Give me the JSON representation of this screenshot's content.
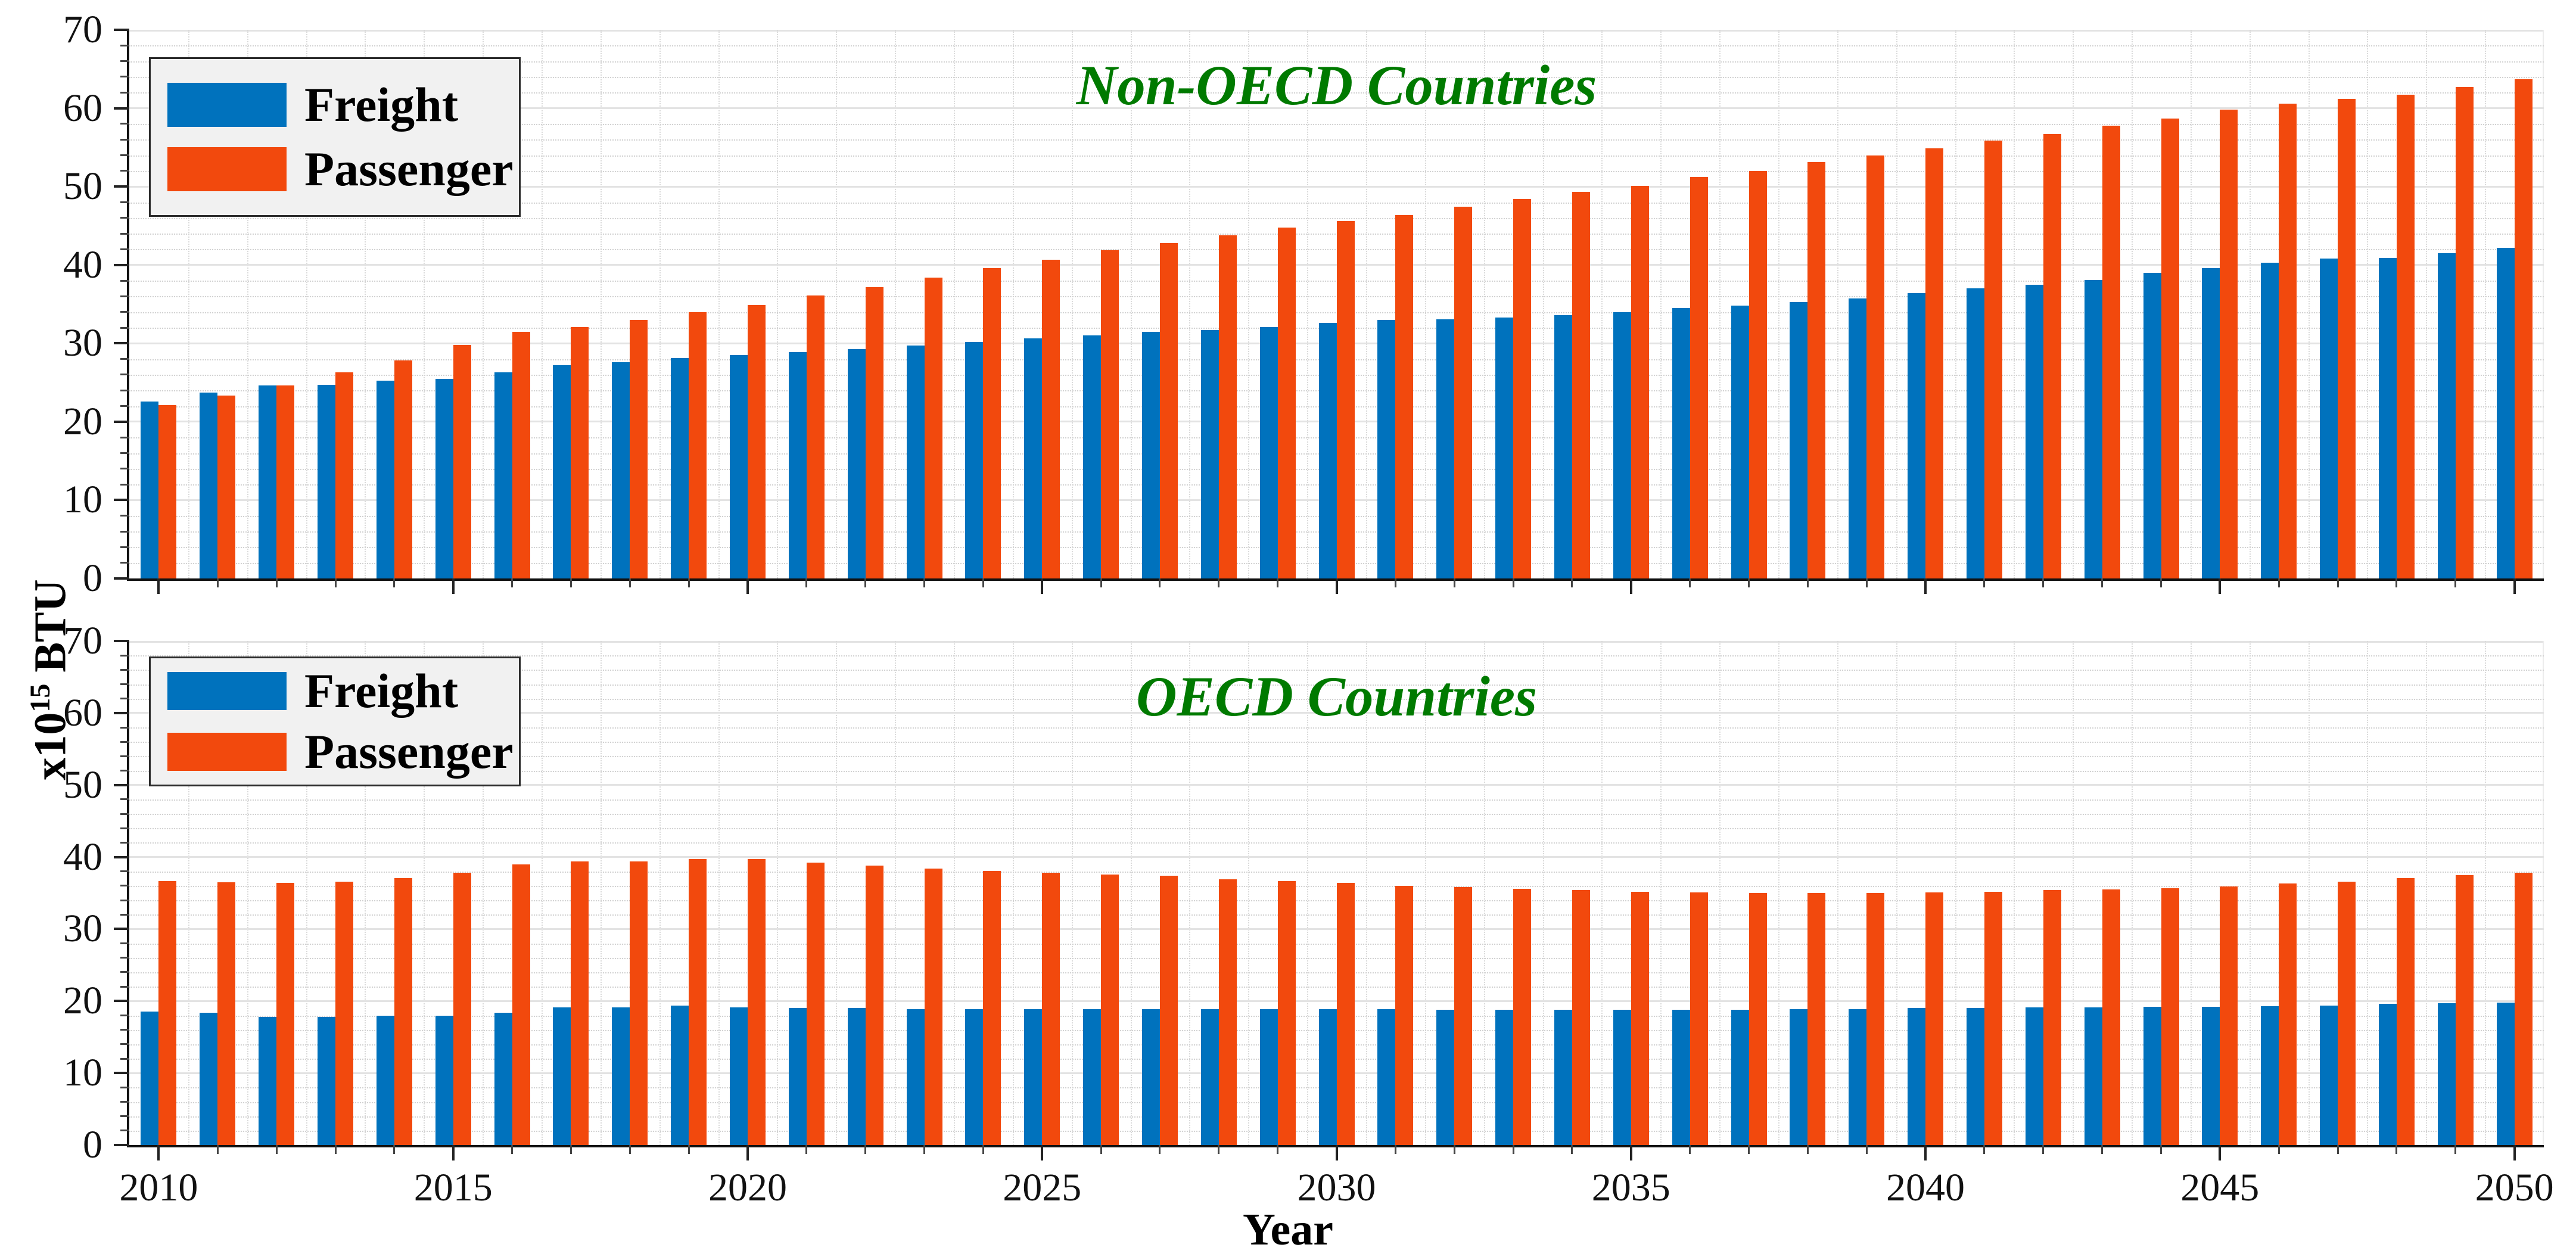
{
  "figure": {
    "ylabel_prefix": "x10",
    "ylabel_sup": "15",
    "ylabel_suffix": " BTU",
    "xlabel": "Year",
    "colors": {
      "freight": "#0072BD",
      "passenger": "#F2490D",
      "title_green": "#007A00",
      "grid_major": "#e3e3e3",
      "grid_minor": "#d2d2d2",
      "legend_bg": "#f1f1f1"
    }
  },
  "chart_data": [
    {
      "type": "bar",
      "title": "Non-OECD Countries",
      "grid": "on",
      "legend_position": "top-left",
      "ylim": [
        0,
        70
      ],
      "y_ticks": [
        0,
        10,
        20,
        30,
        40,
        50,
        60,
        70
      ],
      "x_ticks": [
        2010,
        2015,
        2020,
        2025,
        2030,
        2035,
        2040,
        2045,
        2050
      ],
      "categories": [
        2010,
        2011,
        2012,
        2013,
        2014,
        2015,
        2016,
        2017,
        2018,
        2019,
        2020,
        2021,
        2022,
        2023,
        2024,
        2025,
        2026,
        2027,
        2028,
        2029,
        2030,
        2031,
        2032,
        2033,
        2034,
        2035,
        2036,
        2037,
        2038,
        2039,
        2040,
        2041,
        2042,
        2043,
        2044,
        2045,
        2046,
        2047,
        2048,
        2049,
        2050
      ],
      "series": [
        {
          "name": "Freight",
          "color": "#0072BD",
          "values": [
            22.6,
            23.7,
            24.6,
            24.7,
            25.2,
            25.5,
            26.3,
            27.2,
            27.6,
            28.1,
            28.5,
            28.9,
            29.3,
            29.7,
            30.2,
            30.6,
            31.0,
            31.5,
            31.7,
            32.1,
            32.6,
            33.0,
            33.1,
            33.3,
            33.6,
            34.0,
            34.5,
            34.8,
            35.3,
            35.7,
            36.4,
            37.0,
            37.5,
            38.1,
            39.0,
            39.6,
            40.3,
            40.8,
            40.9,
            41.5,
            42.2
          ]
        },
        {
          "name": "Passenger",
          "color": "#F2490D",
          "values": [
            22.1,
            23.3,
            24.6,
            26.3,
            27.8,
            29.8,
            31.5,
            32.1,
            33.0,
            34.0,
            34.9,
            36.1,
            37.2,
            38.4,
            39.6,
            40.7,
            41.9,
            42.8,
            43.8,
            44.8,
            45.6,
            46.4,
            47.4,
            48.4,
            49.3,
            50.1,
            51.2,
            52.0,
            53.1,
            54.0,
            54.9,
            55.9,
            56.7,
            57.8,
            58.7,
            59.8,
            60.6,
            61.2,
            61.7,
            62.7,
            63.7
          ]
        }
      ]
    },
    {
      "type": "bar",
      "title": "OECD Countries",
      "grid": "on",
      "legend_position": "top-left",
      "ylim": [
        0,
        70
      ],
      "y_ticks": [
        0,
        10,
        20,
        30,
        40,
        50,
        60,
        70
      ],
      "x_ticks": [
        2010,
        2015,
        2020,
        2025,
        2030,
        2035,
        2040,
        2045,
        2050
      ],
      "categories": [
        2010,
        2011,
        2012,
        2013,
        2014,
        2015,
        2016,
        2017,
        2018,
        2019,
        2020,
        2021,
        2022,
        2023,
        2024,
        2025,
        2026,
        2027,
        2028,
        2029,
        2030,
        2031,
        2032,
        2033,
        2034,
        2035,
        2036,
        2037,
        2038,
        2039,
        2040,
        2041,
        2042,
        2043,
        2044,
        2045,
        2046,
        2047,
        2048,
        2049,
        2050
      ],
      "series": [
        {
          "name": "Freight",
          "color": "#0072BD",
          "values": [
            18.5,
            18.4,
            17.8,
            17.8,
            18.0,
            18.0,
            18.4,
            19.1,
            19.1,
            19.4,
            19.1,
            19.0,
            19.0,
            18.9,
            18.9,
            18.9,
            18.9,
            18.9,
            18.9,
            18.9,
            18.9,
            18.9,
            18.8,
            18.8,
            18.8,
            18.8,
            18.8,
            18.8,
            18.9,
            18.9,
            19.0,
            19.0,
            19.1,
            19.1,
            19.2,
            19.2,
            19.3,
            19.4,
            19.6,
            19.7,
            19.8
          ]
        },
        {
          "name": "Passenger",
          "color": "#F2490D",
          "values": [
            36.7,
            36.5,
            36.4,
            36.6,
            37.1,
            37.8,
            39.0,
            39.4,
            39.4,
            39.7,
            39.7,
            39.2,
            38.8,
            38.4,
            38.1,
            37.8,
            37.6,
            37.4,
            36.9,
            36.7,
            36.4,
            36.0,
            35.8,
            35.6,
            35.4,
            35.2,
            35.1,
            35.0,
            35.0,
            35.0,
            35.1,
            35.2,
            35.4,
            35.5,
            35.7,
            35.9,
            36.3,
            36.6,
            37.1,
            37.5,
            37.8
          ]
        }
      ]
    }
  ]
}
